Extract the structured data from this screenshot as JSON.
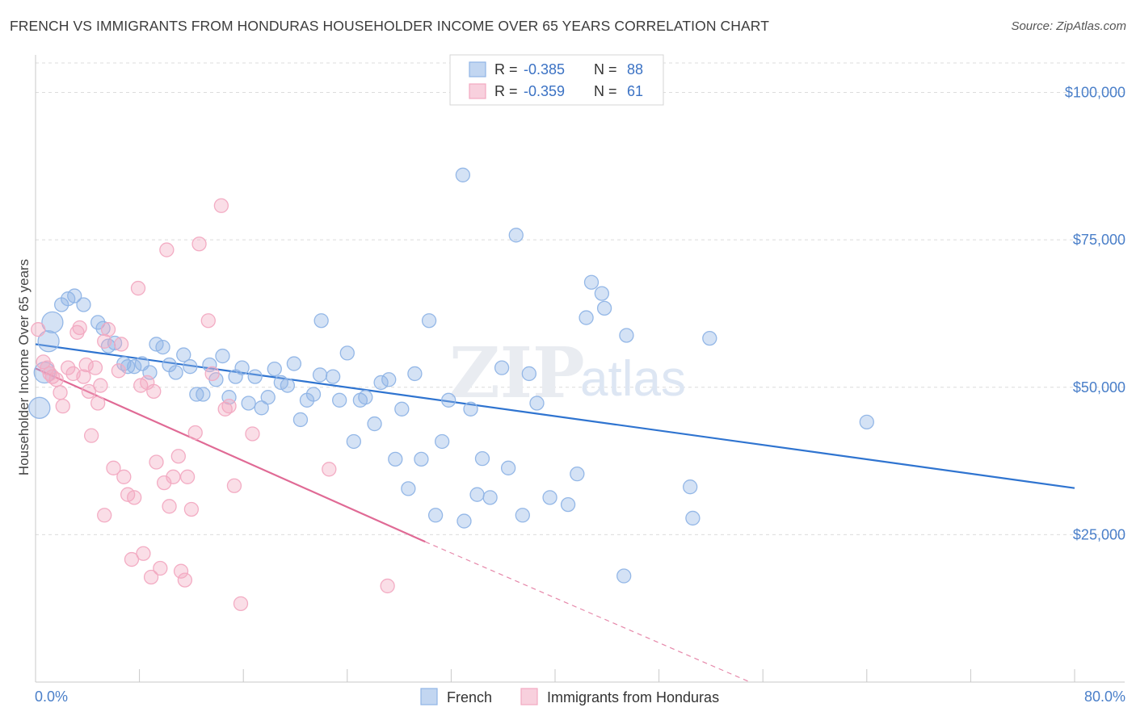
{
  "title": "FRENCH VS IMMIGRANTS FROM HONDURAS HOUSEHOLDER INCOME OVER 65 YEARS CORRELATION CHART",
  "source": "Source: ZipAtlas.com",
  "watermark": {
    "zip": "ZIP",
    "atlas": "atlas"
  },
  "chart_data": {
    "type": "scatter",
    "ylabel": "Householder Income Over 65 years",
    "xlim": [
      0,
      80
    ],
    "ylim": [
      0,
      105000
    ],
    "x_tick_labels": [
      "0.0%",
      "80.0%"
    ],
    "y_ticks": [
      {
        "value": 25000,
        "label": "$25,000"
      },
      {
        "value": 50000,
        "label": "$50,000"
      },
      {
        "value": 75000,
        "label": "$75,000"
      },
      {
        "value": 100000,
        "label": "$100,000"
      }
    ],
    "grid": true,
    "legend_position": "bottom-center",
    "stats_box": [
      {
        "r_label": "R = ",
        "r": "-0.385",
        "n_label": "N = ",
        "n": "88"
      },
      {
        "r_label": "R = ",
        "r": "-0.359",
        "n_label": "N = ",
        "n": "61"
      }
    ],
    "series": [
      {
        "name": "French",
        "color": "#8fb4e6",
        "line_color": "#2f74d0",
        "trend": {
          "x0": 0,
          "y0": 57300,
          "x1": 80,
          "y1": 32900
        },
        "points": [
          [
            0.3,
            46500
          ],
          [
            0.7,
            52500
          ],
          [
            1.0,
            57800
          ],
          [
            1.3,
            61000
          ],
          [
            2.0,
            64000
          ],
          [
            2.5,
            65000
          ],
          [
            3.0,
            65500
          ],
          [
            3.7,
            64000
          ],
          [
            4.8,
            61000
          ],
          [
            5.2,
            60000
          ],
          [
            5.6,
            57000
          ],
          [
            6.1,
            57500
          ],
          [
            6.8,
            54000
          ],
          [
            7.1,
            53500
          ],
          [
            7.6,
            53500
          ],
          [
            8.2,
            54000
          ],
          [
            8.8,
            52500
          ],
          [
            9.3,
            57300
          ],
          [
            9.8,
            56800
          ],
          [
            10.3,
            53800
          ],
          [
            10.8,
            52500
          ],
          [
            11.4,
            55500
          ],
          [
            11.9,
            53500
          ],
          [
            12.4,
            48800
          ],
          [
            12.9,
            48800
          ],
          [
            13.4,
            53800
          ],
          [
            13.9,
            51300
          ],
          [
            14.4,
            55300
          ],
          [
            14.9,
            48300
          ],
          [
            15.4,
            51800
          ],
          [
            15.9,
            53300
          ],
          [
            16.4,
            47300
          ],
          [
            16.9,
            51800
          ],
          [
            17.4,
            46500
          ],
          [
            17.9,
            48300
          ],
          [
            18.4,
            53100
          ],
          [
            18.9,
            50800
          ],
          [
            19.4,
            50300
          ],
          [
            19.9,
            54000
          ],
          [
            20.4,
            44500
          ],
          [
            20.9,
            47800
          ],
          [
            21.4,
            48800
          ],
          [
            21.9,
            52100
          ],
          [
            22.0,
            61300
          ],
          [
            22.9,
            51800
          ],
          [
            23.4,
            47800
          ],
          [
            24.0,
            55800
          ],
          [
            24.5,
            40800
          ],
          [
            25.0,
            47800
          ],
          [
            25.4,
            48300
          ],
          [
            26.1,
            43800
          ],
          [
            26.6,
            50800
          ],
          [
            27.2,
            51300
          ],
          [
            27.7,
            37800
          ],
          [
            28.2,
            46300
          ],
          [
            28.7,
            32800
          ],
          [
            29.2,
            52300
          ],
          [
            29.7,
            37800
          ],
          [
            30.3,
            61300
          ],
          [
            30.8,
            28300
          ],
          [
            31.3,
            40800
          ],
          [
            31.8,
            47800
          ],
          [
            32.9,
            86000
          ],
          [
            33.0,
            27300
          ],
          [
            33.5,
            46300
          ],
          [
            34.0,
            31800
          ],
          [
            34.4,
            37900
          ],
          [
            35.0,
            31300
          ],
          [
            35.9,
            53300
          ],
          [
            36.4,
            36300
          ],
          [
            37.0,
            75800
          ],
          [
            37.5,
            28300
          ],
          [
            38.0,
            52300
          ],
          [
            38.6,
            47300
          ],
          [
            39.6,
            31300
          ],
          [
            41.0,
            30100
          ],
          [
            41.7,
            35300
          ],
          [
            42.4,
            61800
          ],
          [
            42.8,
            67800
          ],
          [
            43.6,
            65900
          ],
          [
            43.8,
            63400
          ],
          [
            45.3,
            18000
          ],
          [
            45.5,
            58800
          ],
          [
            50.4,
            33100
          ],
          [
            50.6,
            27800
          ],
          [
            51.9,
            58300
          ],
          [
            64.0,
            44100
          ]
        ]
      },
      {
        "name": "Immigrants from Honduras",
        "color": "#f2a9c1",
        "line_color": "#e06a95",
        "trend": {
          "x0": 0,
          "y0": 53200,
          "x1": 30,
          "y1": 23800
        },
        "trend_dash_end": {
          "x": 55,
          "y": 0
        },
        "points": [
          [
            0.2,
            59800
          ],
          [
            0.6,
            54300
          ],
          [
            0.9,
            53300
          ],
          [
            1.1,
            52300
          ],
          [
            1.3,
            51800
          ],
          [
            1.6,
            51300
          ],
          [
            1.9,
            49100
          ],
          [
            2.1,
            46800
          ],
          [
            2.5,
            53300
          ],
          [
            2.9,
            52300
          ],
          [
            3.2,
            59300
          ],
          [
            3.4,
            60100
          ],
          [
            3.7,
            51800
          ],
          [
            3.9,
            53800
          ],
          [
            4.1,
            49300
          ],
          [
            4.3,
            41800
          ],
          [
            4.6,
            53300
          ],
          [
            4.8,
            47300
          ],
          [
            5.0,
            50300
          ],
          [
            5.3,
            57800
          ],
          [
            5.3,
            28300
          ],
          [
            5.6,
            59800
          ],
          [
            6.0,
            36300
          ],
          [
            6.4,
            52800
          ],
          [
            6.6,
            57300
          ],
          [
            6.8,
            34800
          ],
          [
            7.1,
            31800
          ],
          [
            7.4,
            20800
          ],
          [
            7.6,
            31300
          ],
          [
            7.9,
            66800
          ],
          [
            8.1,
            50300
          ],
          [
            8.3,
            21800
          ],
          [
            8.6,
            50800
          ],
          [
            8.9,
            17800
          ],
          [
            9.1,
            49300
          ],
          [
            9.3,
            37300
          ],
          [
            9.6,
            19300
          ],
          [
            9.9,
            33800
          ],
          [
            10.1,
            73300
          ],
          [
            10.3,
            29800
          ],
          [
            10.6,
            34800
          ],
          [
            11.0,
            38300
          ],
          [
            11.2,
            18800
          ],
          [
            11.5,
            17300
          ],
          [
            11.7,
            34800
          ],
          [
            12.0,
            29300
          ],
          [
            12.3,
            42300
          ],
          [
            12.6,
            74300
          ],
          [
            13.3,
            61300
          ],
          [
            13.6,
            52300
          ],
          [
            14.3,
            80800
          ],
          [
            14.6,
            46300
          ],
          [
            14.9,
            46800
          ],
          [
            15.3,
            33300
          ],
          [
            15.8,
            13300
          ],
          [
            16.7,
            42100
          ],
          [
            22.6,
            36100
          ],
          [
            27.1,
            16300
          ]
        ]
      }
    ]
  },
  "legend": {
    "items": [
      "French",
      "Immigrants from Honduras"
    ]
  }
}
